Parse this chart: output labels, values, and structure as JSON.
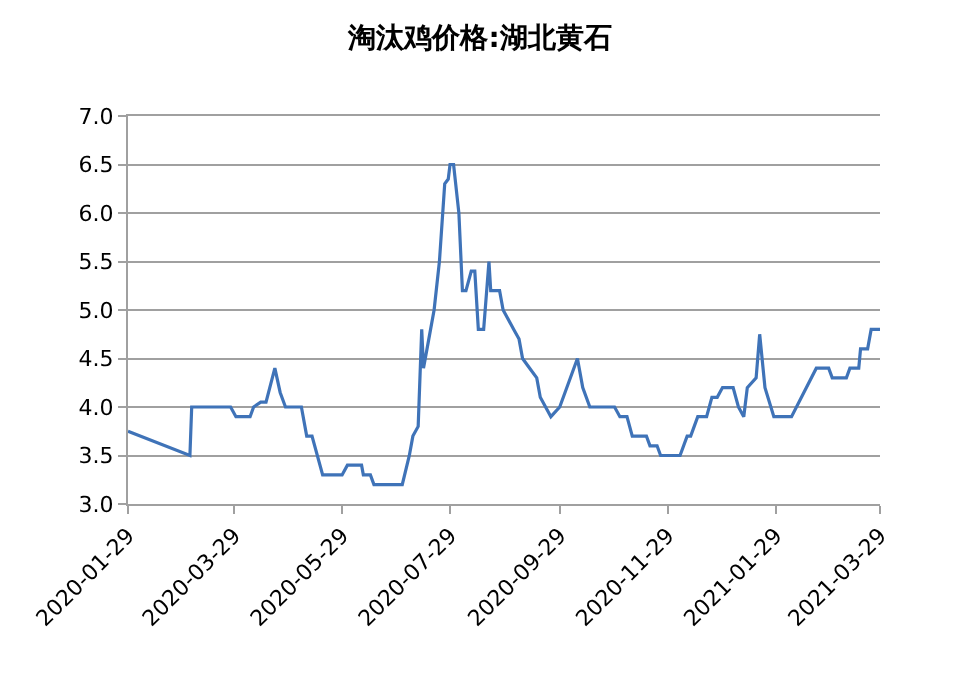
{
  "chart_data": {
    "type": "line",
    "title": "淘汰鸡价格:湖北黄石",
    "x": [
      "2020-01-29",
      "2020-03-04",
      "2020-03-05",
      "2020-03-27",
      "2020-03-30",
      "2020-04-07",
      "2020-04-09",
      "2020-04-13",
      "2020-04-16",
      "2020-04-21",
      "2020-04-24",
      "2020-04-27",
      "2020-05-06",
      "2020-05-09",
      "2020-05-12",
      "2020-05-18",
      "2020-05-29",
      "2020-06-01",
      "2020-06-09",
      "2020-06-10",
      "2020-06-14",
      "2020-06-16",
      "2020-07-02",
      "2020-07-06",
      "2020-07-08",
      "2020-07-11",
      "2020-07-13",
      "2020-07-14",
      "2020-07-17",
      "2020-07-20",
      "2020-07-23",
      "2020-07-26",
      "2020-07-28",
      "2020-07-29",
      "2020-07-31",
      "2020-08-03",
      "2020-08-05",
      "2020-08-07",
      "2020-08-10",
      "2020-08-12",
      "2020-08-14",
      "2020-08-17",
      "2020-08-20",
      "2020-08-21",
      "2020-08-26",
      "2020-08-28",
      "2020-09-03",
      "2020-09-06",
      "2020-09-08",
      "2020-09-12",
      "2020-09-16",
      "2020-09-18",
      "2020-09-21",
      "2020-09-24",
      "2020-09-29",
      "2020-10-09",
      "2020-10-12",
      "2020-10-16",
      "2020-10-30",
      "2020-11-02",
      "2020-11-06",
      "2020-11-09",
      "2020-11-17",
      "2020-11-19",
      "2020-11-23",
      "2020-11-25",
      "2020-12-06",
      "2020-12-10",
      "2020-12-12",
      "2020-12-16",
      "2020-12-21",
      "2020-12-24",
      "2020-12-27",
      "2020-12-30",
      "2021-01-05",
      "2021-01-08",
      "2021-01-11",
      "2021-01-13",
      "2021-01-18",
      "2021-01-20",
      "2021-01-23",
      "2021-01-28",
      "2021-02-07",
      "2021-02-21",
      "2021-02-28",
      "2021-03-02",
      "2021-03-10",
      "2021-03-12",
      "2021-03-17",
      "2021-03-18",
      "2021-03-22",
      "2021-03-24",
      "2021-03-29"
    ],
    "series": [
      {
        "color": "#3f73b8",
        "values": [
          3.75,
          3.5,
          4.0,
          4.0,
          3.9,
          3.9,
          4.0,
          4.05,
          4.05,
          4.4,
          4.15,
          4.0,
          4.0,
          3.7,
          3.7,
          3.3,
          3.3,
          3.4,
          3.4,
          3.3,
          3.3,
          3.2,
          3.2,
          3.5,
          3.7,
          3.8,
          4.8,
          4.4,
          4.7,
          5.0,
          5.5,
          6.3,
          6.35,
          6.5,
          6.5,
          6.0,
          5.2,
          5.2,
          5.4,
          5.4,
          4.8,
          4.8,
          5.5,
          5.2,
          5.2,
          5.0,
          4.8,
          4.7,
          4.5,
          4.4,
          4.3,
          4.1,
          4.0,
          3.9,
          4.0,
          4.5,
          4.2,
          4.0,
          4.0,
          3.9,
          3.9,
          3.7,
          3.7,
          3.6,
          3.6,
          3.5,
          3.5,
          3.7,
          3.7,
          3.9,
          3.9,
          4.1,
          4.1,
          4.2,
          4.2,
          4.0,
          3.9,
          4.2,
          4.3,
          4.75,
          4.2,
          3.9,
          3.9,
          4.4,
          4.4,
          4.3,
          4.3,
          4.4,
          4.4,
          4.6,
          4.6,
          4.8,
          4.8
        ]
      }
    ],
    "xlim": [
      "2020-01-29",
      "2021-03-29"
    ],
    "xticks": [
      "2020-01-29",
      "2020-03-29",
      "2020-05-29",
      "2020-07-29",
      "2020-09-29",
      "2020-11-29",
      "2021-01-29",
      "2021-03-29"
    ],
    "ylim": [
      3.0,
      7.0
    ],
    "yticks": [
      {
        "value": 3.0,
        "label": "3.0"
      },
      {
        "value": 3.5,
        "label": "3.5"
      },
      {
        "value": 4.0,
        "label": "4.0"
      },
      {
        "value": 4.5,
        "label": "4.5"
      },
      {
        "value": 5.0,
        "label": "5.0"
      },
      {
        "value": 5.5,
        "label": "5.5"
      },
      {
        "value": 6.0,
        "label": "6.0"
      },
      {
        "value": 6.5,
        "label": "6.5"
      },
      {
        "value": 7.0,
        "label": "7.0"
      }
    ],
    "grid": "y",
    "marker": "none",
    "line_style": "solid"
  }
}
